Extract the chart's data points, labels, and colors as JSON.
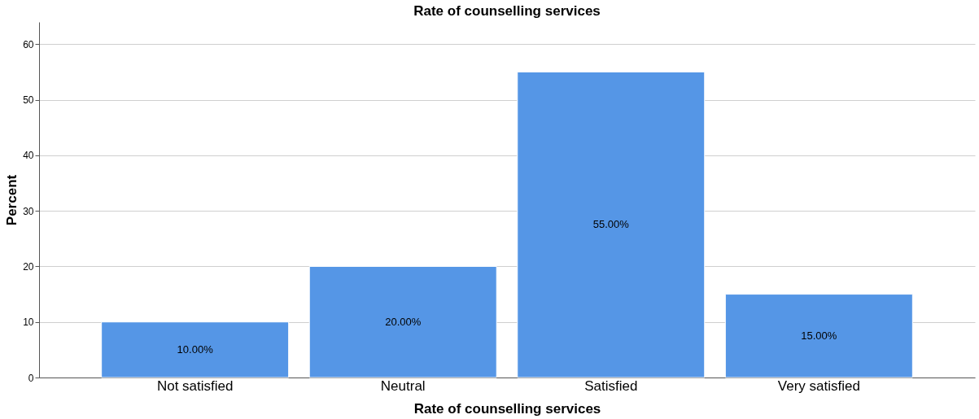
{
  "chart_data": {
    "type": "bar",
    "title": "Rate of counselling services",
    "xlabel": "Rate of counselling services",
    "ylabel": "Percent",
    "categories": [
      "Not satisfied",
      "Neutral",
      "Satisfied",
      "Very satisfied"
    ],
    "values": [
      10,
      20,
      55,
      15
    ],
    "value_labels": [
      "10.00%",
      "20.00%",
      "55.00%",
      "15.00%"
    ],
    "color": "#5596e6",
    "ylim": [
      0,
      64
    ],
    "yticks": [
      0,
      10,
      20,
      30,
      40,
      50,
      60
    ],
    "grid": "y"
  }
}
